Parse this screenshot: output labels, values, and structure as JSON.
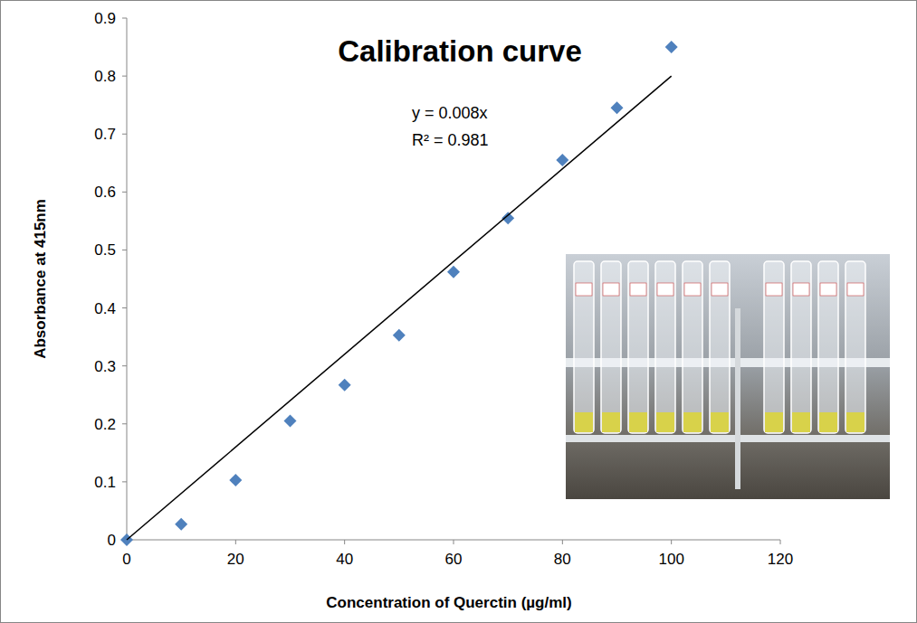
{
  "chart_data": {
    "type": "scatter",
    "title": "Calibration curve",
    "x_label": "Concentration of Querctin (µg/ml)",
    "y_label": "Absorbance at 415nm",
    "annotations": [
      "y = 0.008x",
      "R² = 0.981"
    ],
    "xlim": [
      0,
      120
    ],
    "xticks": [
      0,
      20,
      40,
      60,
      80,
      100,
      120
    ],
    "ylim": [
      0,
      0.9
    ],
    "yticks": [
      0,
      0.1,
      0.2,
      0.3,
      0.4,
      0.5,
      0.6,
      0.7,
      0.8,
      0.9
    ],
    "grid": false,
    "series": [
      {
        "type": "scatter",
        "color": "#4f81bd",
        "marker": "diamond",
        "x": [
          0,
          10,
          20,
          30,
          40,
          50,
          60,
          70,
          80,
          90,
          100
        ],
        "values": [
          0,
          0.027,
          0.103,
          0.205,
          0.267,
          0.353,
          0.462,
          0.555,
          0.655,
          0.745,
          0.85
        ]
      },
      {
        "type": "line",
        "color": "#000000",
        "line_style": "solid",
        "x": [
          0,
          100
        ],
        "values": [
          0,
          0.8
        ]
      }
    ]
  }
}
